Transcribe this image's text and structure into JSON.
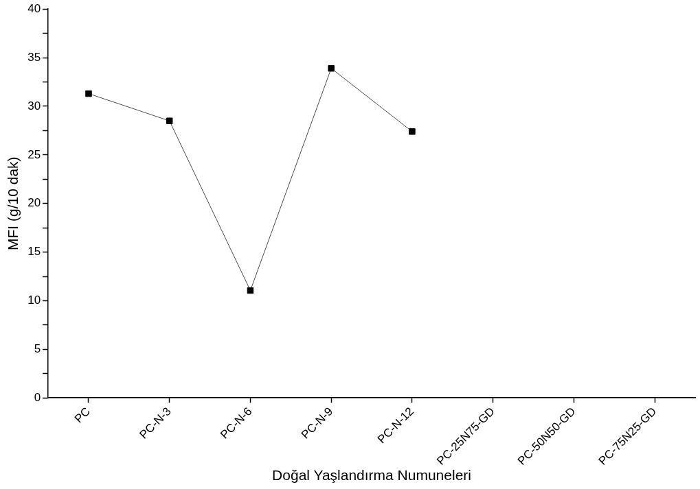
{
  "chart_data": {
    "type": "line",
    "xlabel": "Doğal Yaşlandırma Numuneleri",
    "ylabel": "MFI (g/10 dak)",
    "categories": [
      "PC",
      "PC-N-3",
      "PC-N-6",
      "PC-N-9",
      "PC-N-12",
      "PC-25N75-GD",
      "PC-50N50-GD",
      "PC-75N25-GD"
    ],
    "series": [
      {
        "color": "#000000",
        "values": [
          31.3,
          28.5,
          11.05,
          33.9,
          27.4,
          null,
          null,
          null
        ]
      }
    ],
    "ylim": [
      0,
      40
    ],
    "yticks": [
      0,
      {
        "value": 2.5,
        "label": null
      },
      5,
      {
        "value": 7.5,
        "label": null
      },
      10,
      {
        "value": 12.5,
        "label": null
      },
      15,
      {
        "value": 17.5,
        "label": null
      },
      20,
      {
        "value": 22.5,
        "label": null
      },
      25,
      {
        "value": 27.5,
        "label": null
      },
      30,
      {
        "value": 32.5,
        "label": null
      },
      35,
      {
        "value": 37.5,
        "label": null
      },
      40
    ],
    "marker": "square",
    "line_style": "solid",
    "grid": false,
    "legend": false
  }
}
